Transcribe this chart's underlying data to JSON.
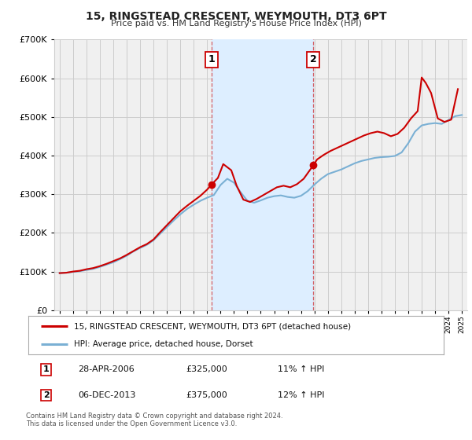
{
  "title": "15, RINGSTEAD CRESCENT, WEYMOUTH, DT3 6PT",
  "subtitle": "Price paid vs. HM Land Registry's House Price Index (HPI)",
  "legend_line1": "15, RINGSTEAD CRESCENT, WEYMOUTH, DT3 6PT (detached house)",
  "legend_line2": "HPI: Average price, detached house, Dorset",
  "footnote1": "Contains HM Land Registry data © Crown copyright and database right 2024.",
  "footnote2": "This data is licensed under the Open Government Licence v3.0.",
  "sale1_date": "28-APR-2006",
  "sale1_price": "£325,000",
  "sale1_hpi": "11% ↑ HPI",
  "sale2_date": "06-DEC-2013",
  "sale2_price": "£375,000",
  "sale2_hpi": "12% ↑ HPI",
  "sale1_year": 2006.32,
  "sale1_value": 325000,
  "sale2_year": 2013.92,
  "sale2_value": 375000,
  "red_color": "#cc0000",
  "blue_color": "#7ab0d4",
  "shade_color": "#ddeeff",
  "grid_color": "#cccccc",
  "bg_color": "#f0f0f0",
  "ylim": [
    0,
    700000
  ],
  "xlim_start": 1994.6,
  "xlim_end": 2025.4,
  "hpi_years": [
    1995.0,
    1995.5,
    1996.0,
    1996.5,
    1997.0,
    1997.5,
    1998.0,
    1998.5,
    1999.0,
    1999.5,
    2000.0,
    2000.5,
    2001.0,
    2001.5,
    2002.0,
    2002.5,
    2003.0,
    2003.5,
    2004.0,
    2004.5,
    2005.0,
    2005.5,
    2006.0,
    2006.5,
    2007.0,
    2007.5,
    2008.0,
    2008.5,
    2009.0,
    2009.5,
    2010.0,
    2010.5,
    2011.0,
    2011.5,
    2012.0,
    2012.5,
    2013.0,
    2013.5,
    2014.0,
    2014.5,
    2015.0,
    2015.5,
    2016.0,
    2016.5,
    2017.0,
    2017.5,
    2018.0,
    2018.5,
    2019.0,
    2019.5,
    2020.0,
    2020.5,
    2021.0,
    2021.5,
    2022.0,
    2022.5,
    2023.0,
    2023.5,
    2024.0,
    2024.5,
    2025.0
  ],
  "hpi_values": [
    96000,
    97000,
    99000,
    101000,
    104000,
    107000,
    112000,
    118000,
    124000,
    132000,
    141000,
    152000,
    161000,
    169000,
    181000,
    198000,
    215000,
    232000,
    248000,
    262000,
    273000,
    283000,
    291000,
    298000,
    324000,
    340000,
    330000,
    305000,
    283000,
    278000,
    284000,
    291000,
    295000,
    297000,
    293000,
    291000,
    296000,
    308000,
    325000,
    340000,
    352000,
    358000,
    364000,
    372000,
    380000,
    386000,
    390000,
    394000,
    396000,
    397000,
    399000,
    408000,
    432000,
    462000,
    478000,
    482000,
    484000,
    482000,
    492000,
    502000,
    505000
  ],
  "price_years": [
    1995.0,
    1995.5,
    1996.0,
    1996.5,
    1997.0,
    1997.5,
    1998.0,
    1998.5,
    1999.0,
    1999.5,
    2000.0,
    2000.5,
    2001.0,
    2001.5,
    2002.0,
    2002.5,
    2003.0,
    2003.5,
    2004.0,
    2004.5,
    2005.0,
    2005.5,
    2006.0,
    2006.32,
    2006.8,
    2007.2,
    2007.8,
    2008.2,
    2008.7,
    2009.2,
    2009.7,
    2010.2,
    2010.7,
    2011.2,
    2011.7,
    2012.2,
    2012.7,
    2013.2,
    2013.92,
    2014.2,
    2014.7,
    2015.2,
    2015.7,
    2016.2,
    2016.7,
    2017.2,
    2017.7,
    2018.2,
    2018.7,
    2019.2,
    2019.7,
    2020.2,
    2020.7,
    2021.2,
    2021.7,
    2022.0,
    2022.3,
    2022.7,
    2023.2,
    2023.7,
    2024.2,
    2024.7
  ],
  "price_values": [
    96000,
    97000,
    100000,
    102000,
    106000,
    109000,
    114000,
    120000,
    127000,
    134000,
    143000,
    153000,
    163000,
    171000,
    183000,
    202000,
    220000,
    238000,
    256000,
    270000,
    283000,
    296000,
    312000,
    325000,
    342000,
    378000,
    362000,
    322000,
    286000,
    280000,
    288000,
    298000,
    308000,
    318000,
    322000,
    318000,
    326000,
    340000,
    375000,
    390000,
    402000,
    412000,
    420000,
    428000,
    436000,
    444000,
    452000,
    458000,
    462000,
    458000,
    450000,
    456000,
    472000,
    496000,
    515000,
    602000,
    588000,
    562000,
    496000,
    487000,
    493000,
    572000
  ]
}
